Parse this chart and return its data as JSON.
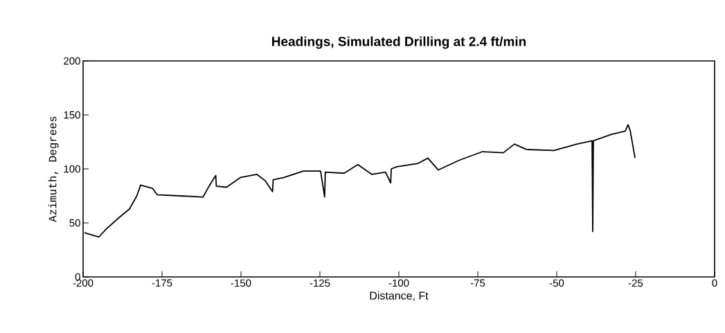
{
  "chart_data": {
    "type": "line",
    "title": "Headings, Simulated Drilling at 2.4 ft/min",
    "xlabel": "Distance, Ft",
    "ylabel": "Azimuth, Degrees",
    "xlim": [
      -200,
      0
    ],
    "ylim": [
      0,
      200
    ],
    "xticks": [
      -200,
      -175,
      -150,
      -125,
      -100,
      -75,
      -50,
      -25,
      0
    ],
    "yticks": [
      0,
      50,
      100,
      150,
      200
    ],
    "marker": "none",
    "line_style": "solid",
    "series": [
      {
        "color": "#000000",
        "x": [
          -199.6,
          -195,
          -192.8,
          -189,
          -185.3,
          -183,
          -181.8,
          -178,
          -176.5,
          -169,
          -162,
          -160.5,
          -158,
          -157.8,
          -154.6,
          -150.2,
          -145,
          -142.3,
          -140,
          -139.8,
          -136.4,
          -130.3,
          -124.8,
          -123.5,
          -123.3,
          -117.3,
          -113,
          -108.6,
          -104.2,
          -102.6,
          -102.4,
          -100.7,
          -94,
          -90.8,
          -87.5,
          -80.9,
          -73.5,
          -66.9,
          -63.4,
          -59.6,
          -50.9,
          -43.6,
          -38.8,
          -38.6,
          -38.4,
          -32.7,
          -28.3,
          -27.4,
          -26.7,
          -25.2
        ],
        "values": [
          41,
          37,
          44,
          54,
          63,
          75,
          85,
          82,
          76,
          75,
          74,
          82,
          94,
          84,
          83,
          92,
          95,
          89,
          79,
          90,
          92,
          98,
          98,
          74,
          97,
          96,
          104,
          95,
          97,
          87,
          100,
          102,
          105,
          110,
          99,
          108,
          116,
          115,
          123,
          118,
          117,
          123,
          126,
          42,
          126,
          132,
          135,
          141,
          135,
          110
        ]
      }
    ]
  }
}
